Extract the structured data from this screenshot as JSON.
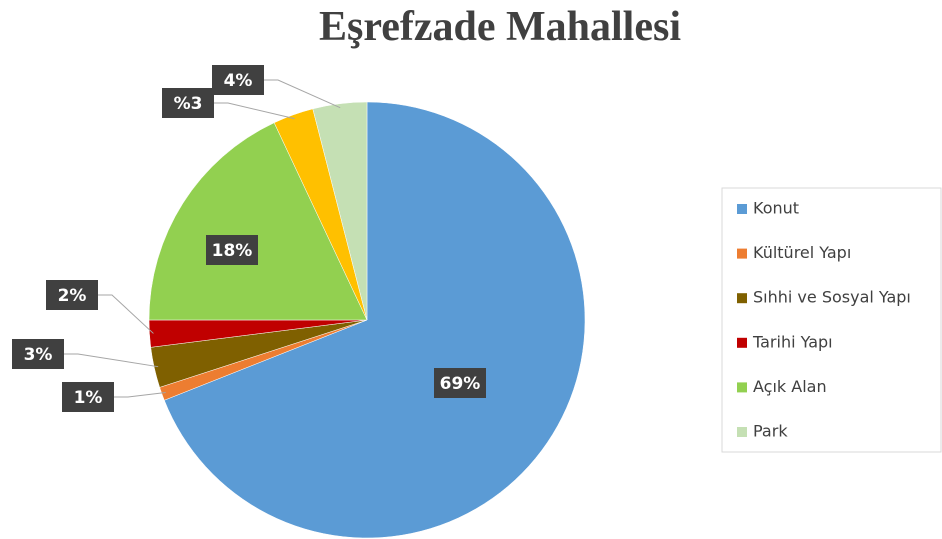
{
  "chart_data": {
    "type": "pie",
    "title": "Eşrefzade Mahallesi",
    "categories": [
      "Konut",
      "Kültürel Yapı",
      "Sıhhi ve Sosyal Yapı",
      "Tarihi Yapı",
      "Açık Alan",
      null,
      "Park"
    ],
    "values": [
      69,
      1,
      3,
      2,
      18,
      3,
      4
    ],
    "value_labels": [
      "69%",
      "1%",
      "3%",
      "2%",
      "18%",
      "%3",
      "4%"
    ],
    "colors": [
      "#5b9bd5",
      "#ed7d31",
      "#7f6000",
      "#c00000",
      "#92d050",
      "#ffc000",
      "#c5e0b4"
    ],
    "legend": "right"
  }
}
